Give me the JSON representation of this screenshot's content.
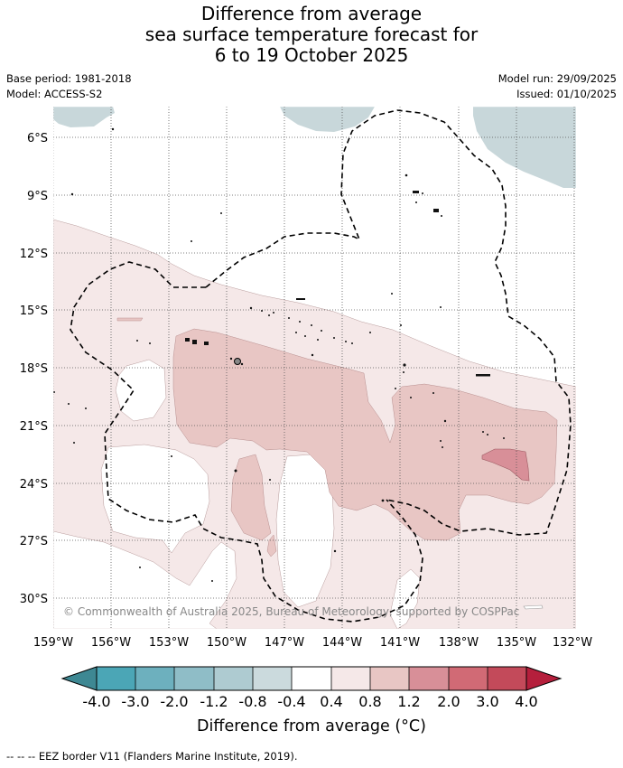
{
  "title": {
    "line1": "Difference from average",
    "line2": "sea surface temperature forecast for",
    "line3": "6 to 19 October 2025"
  },
  "meta": {
    "base_period": "Base period: 1981-2018",
    "model": "Model: ACCESS-S2",
    "model_run": "Model run: 29/09/2025",
    "issued": "Issued: 01/10/2025"
  },
  "map": {
    "latitude_labels": [
      "6°S",
      "9°S",
      "12°S",
      "15°S",
      "18°S",
      "21°S",
      "24°S",
      "27°S",
      "30°S"
    ],
    "longitude_labels": [
      "159°W",
      "156°W",
      "153°W",
      "150°W",
      "147°W",
      "144°W",
      "141°W",
      "138°W",
      "135°W",
      "132°W"
    ],
    "copyright": "© Commonwealth of Australia 2025, Bureau of Meteorology, supported by COSPPac",
    "colors": {
      "land_mask": "#c8d7da",
      "anom_0_4_0_8": "#f5e8e8",
      "anom_0_8_1_2": "#e8c6c4",
      "anom_1_2_2_0": "#d88f98",
      "eez_line": "#000000"
    }
  },
  "colorbar": {
    "ticks": [
      "-4.0",
      "-3.0",
      "-2.0",
      "-1.2",
      "-0.8",
      "-0.4",
      "0.4",
      "0.8",
      "1.2",
      "2.0",
      "3.0",
      "4.0"
    ],
    "colors": [
      "#3e8893",
      "#4ba6b6",
      "#6db0be",
      "#8fbdc7",
      "#aecbd1",
      "#cbdadd",
      "#ffffff",
      "#f5e8e8",
      "#e8c6c4",
      "#d88f98",
      "#d16a75",
      "#c34a5a",
      "#b51f3c"
    ],
    "title": "Difference from average (°C)"
  },
  "footnote": "-- -- -- EEZ border V11 (Flanders Marine Institute, 2019)."
}
